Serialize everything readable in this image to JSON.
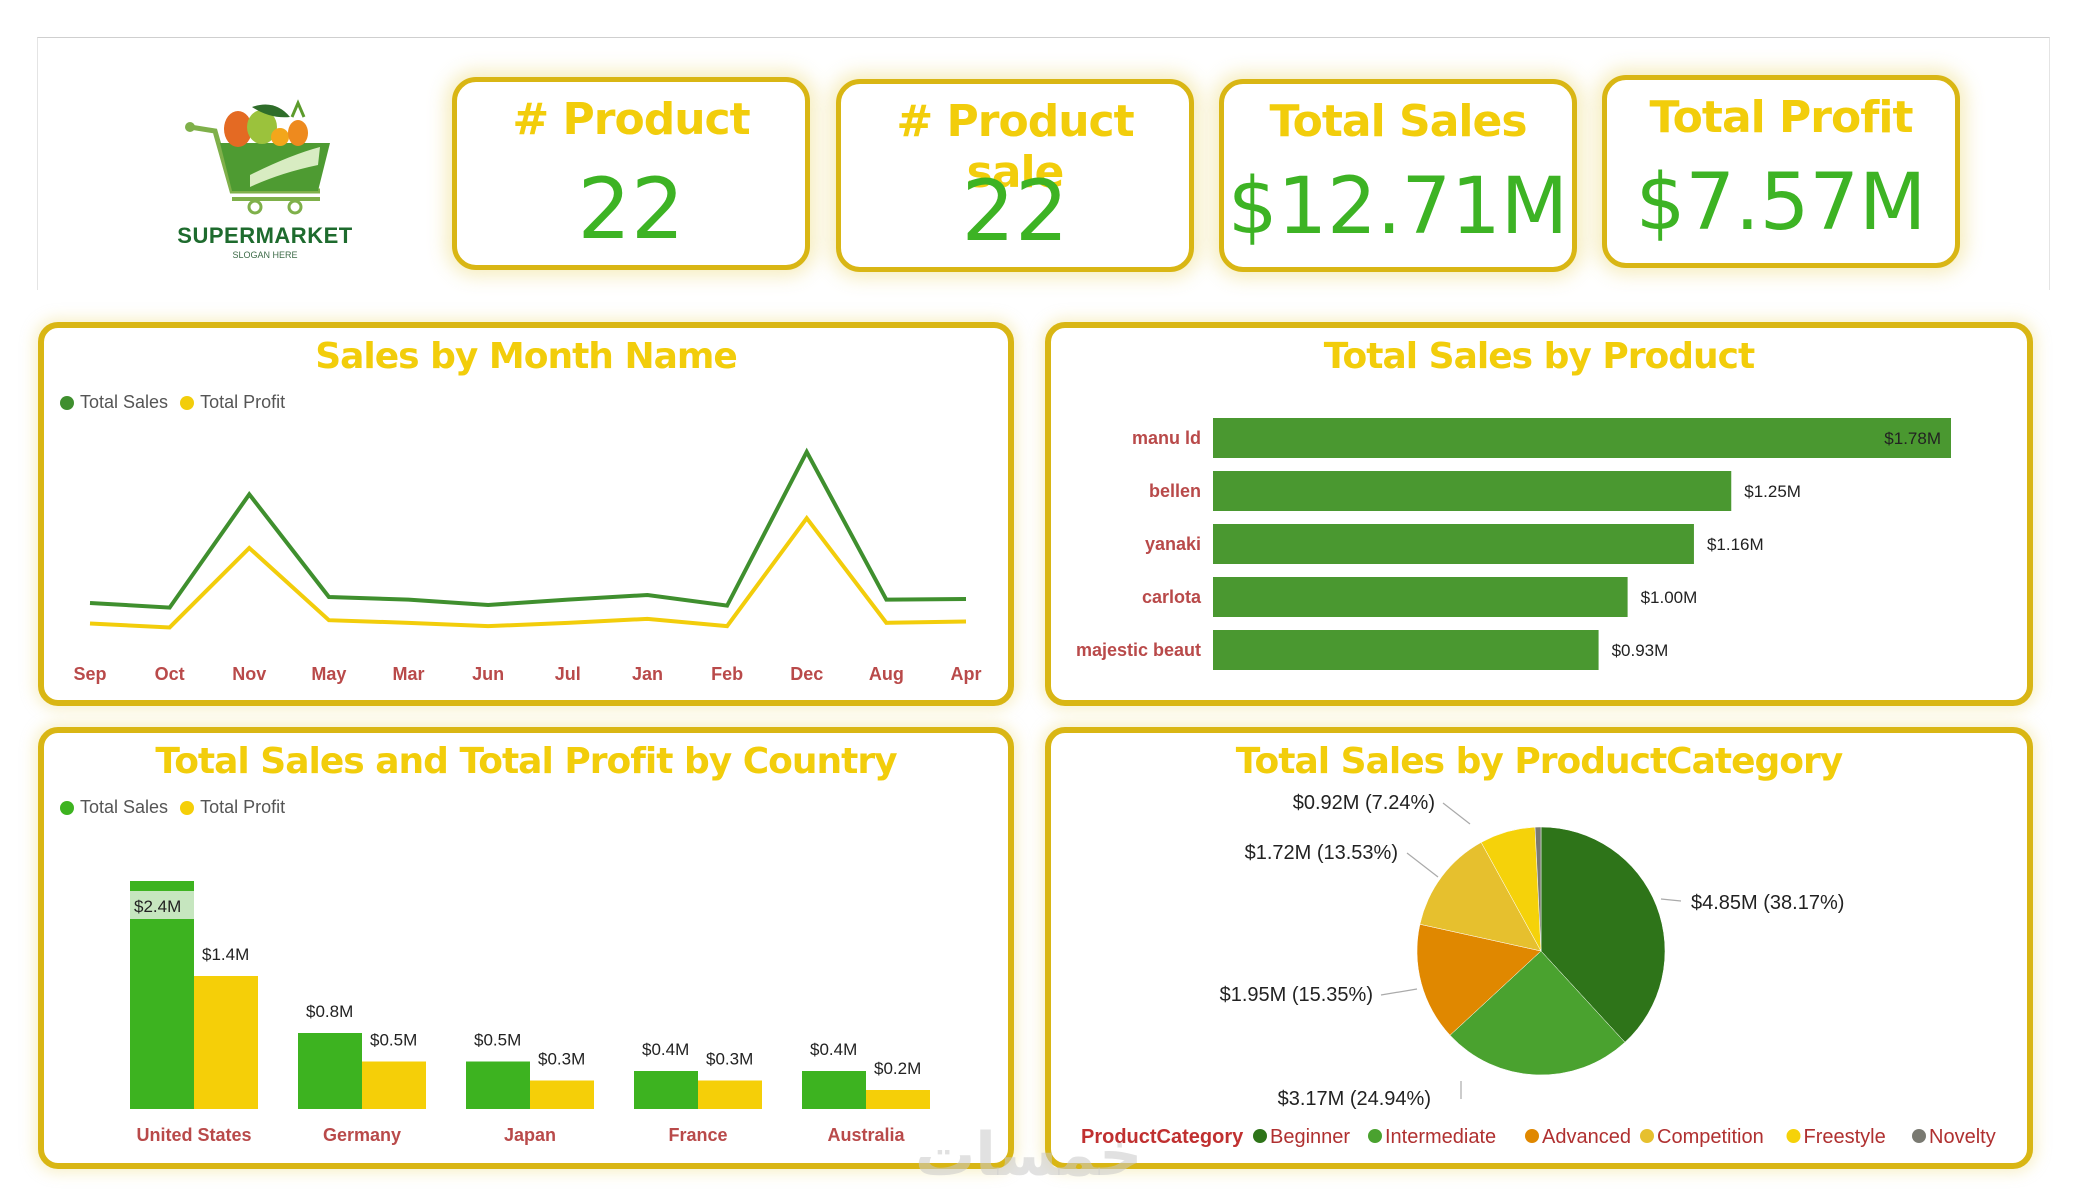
{
  "brand": {
    "name": "SUPERMARKET",
    "slogan": "SLOGAN HERE",
    "logo_icon": "shopping-cart-with-fruits-icon"
  },
  "kpis": [
    {
      "label": "# Product",
      "value": "22"
    },
    {
      "label": "# Product sale",
      "value": "22"
    },
    {
      "label": "Total Sales",
      "value": "$12.71M"
    },
    {
      "label": "Total Profit",
      "value": "$7.57M"
    }
  ],
  "colors": {
    "accent_border": "#d9b614",
    "title_yellow": "#f2cd0b",
    "kpi_green": "#3db324",
    "axis_label_red": "#b94a4a",
    "sales_line": "#3f8f2e",
    "profit_line": "#f2cd0b"
  },
  "watermark": "خمسات",
  "chart_data": [
    {
      "type": "line",
      "title": "Sales by Month Name",
      "xlabel": "",
      "ylabel": "",
      "grid": false,
      "legend": "top-left",
      "categories": [
        "Sep",
        "Oct",
        "Nov",
        "May",
        "Mar",
        "Jun",
        "Jul",
        "Jan",
        "Feb",
        "Dec",
        "Aug",
        "Apr"
      ],
      "series": [
        {
          "name": "Total Sales",
          "color": "#3f8f2e",
          "values": [
            0.71,
            0.64,
            2.35,
            0.8,
            0.76,
            0.68,
            0.76,
            0.83,
            0.67,
            2.99,
            0.76,
            0.77
          ]
        },
        {
          "name": "Total Profit",
          "color": "#f2cd0b",
          "values": [
            0.4,
            0.34,
            1.54,
            0.45,
            0.41,
            0.36,
            0.41,
            0.47,
            0.36,
            1.99,
            0.41,
            0.43
          ]
        }
      ],
      "units": "$M",
      "ylim": [
        0,
        3.2
      ]
    },
    {
      "type": "bar",
      "orientation": "horizontal",
      "title": "Total Sales by Product",
      "categories": [
        "manu ld",
        "bellen",
        "yanaki",
        "carlota",
        "majestic beaut"
      ],
      "values": [
        1.78,
        1.25,
        1.16,
        1.0,
        0.93
      ],
      "data_labels": [
        "$1.78M",
        "$1.25M",
        "$1.16M",
        "$1.00M",
        "$0.93M"
      ],
      "color": "#4a9830",
      "xlim": [
        0,
        1.78
      ],
      "units": "$M"
    },
    {
      "type": "bar",
      "title": "Total Sales and Total Profit by Country",
      "legend": "top-left",
      "categories": [
        "United States",
        "Germany",
        "Japan",
        "France",
        "Australia"
      ],
      "series": [
        {
          "name": "Total Sales",
          "color": "#3db320",
          "values": [
            2.4,
            0.8,
            0.5,
            0.4,
            0.4
          ],
          "data_labels": [
            "$2.4M",
            "$0.8M",
            "$0.5M",
            "$0.4M",
            "$0.4M"
          ]
        },
        {
          "name": "Total Profit",
          "color": "#f5cf08",
          "values": [
            1.4,
            0.5,
            0.3,
            0.3,
            0.2
          ],
          "data_labels": [
            "$1.4M",
            "$0.5M",
            "$0.3M",
            "$0.3M",
            "$0.2M"
          ]
        }
      ],
      "ylim": [
        0,
        2.4
      ],
      "units": "$M"
    },
    {
      "type": "pie",
      "title": "Total Sales by ProductCategory",
      "legend_title": "ProductCategory",
      "legend": "bottom",
      "slices": [
        {
          "name": "Beginner",
          "value": 4.85,
          "percent": 38.17,
          "label": "$4.85M (38.17%)",
          "color": "#2e7419"
        },
        {
          "name": "Intermediate",
          "value": 3.17,
          "percent": 24.94,
          "label": "$3.17M (24.94%)",
          "color": "#4aa22f"
        },
        {
          "name": "Advanced",
          "value": 1.95,
          "percent": 15.35,
          "label": "$1.95M (15.35%)",
          "color": "#e08800"
        },
        {
          "name": "Competition",
          "value": 1.72,
          "percent": 13.53,
          "label": "$1.72M (13.53%)",
          "color": "#e6c02e"
        },
        {
          "name": "Freestyle",
          "value": 0.92,
          "percent": 7.24,
          "label": "$0.92M (7.24%)",
          "color": "#f5d20a"
        },
        {
          "name": "Novelty",
          "value": 0.1,
          "percent": 0.77,
          "label": "",
          "color": "#7a7a72"
        }
      ]
    }
  ]
}
